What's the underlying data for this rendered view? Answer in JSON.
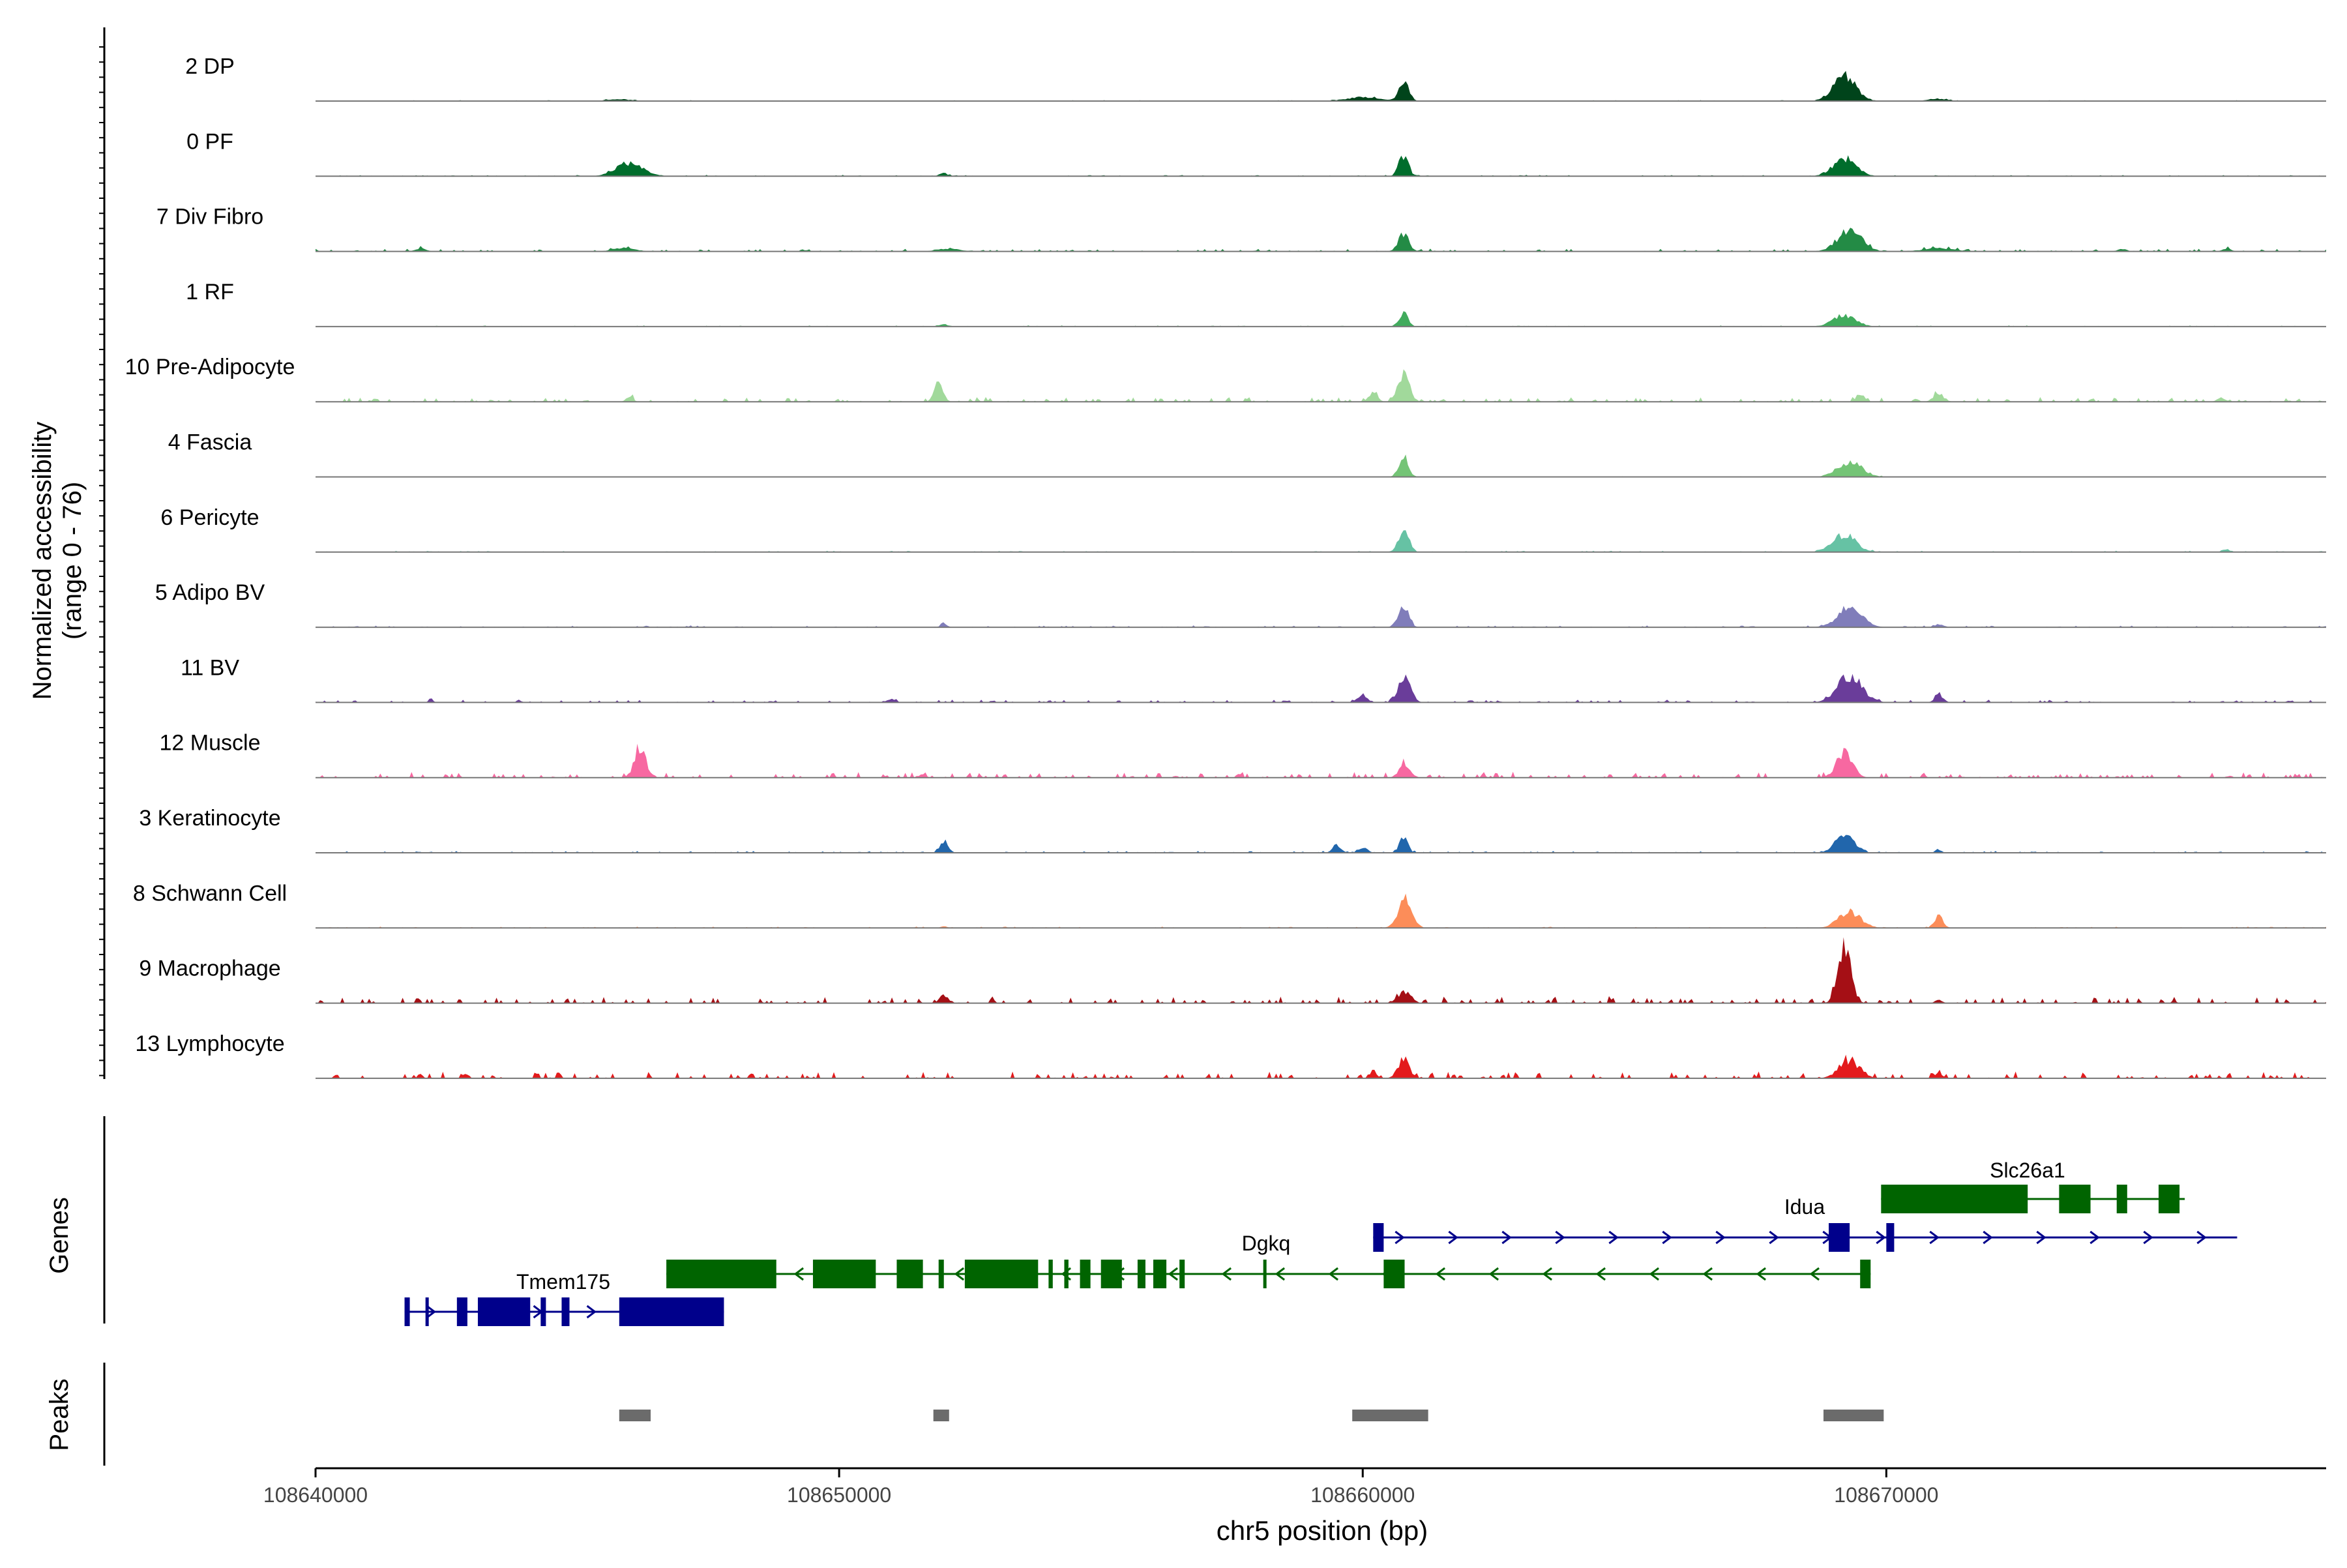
{
  "chart_data": {
    "type": "area",
    "xlabel": "chr5 position (bp)",
    "ylabel_line1": "Normalized accessibility",
    "ylabel_line2": "(range 0 - 76)",
    "y_range": [
      0,
      76
    ],
    "xlim": [
      108640000,
      108678400
    ],
    "x_ticks": [
      {
        "value": 108640000,
        "label": "108640000"
      },
      {
        "value": 108650000,
        "label": "108650000"
      },
      {
        "value": 108660000,
        "label": "108660000"
      },
      {
        "value": 108670000,
        "label": "108670000"
      }
    ],
    "genes_label": "Genes",
    "peaks_label": "Peaks",
    "tracks": [
      {
        "name": "2 DP",
        "color": "#00441b",
        "peaks": [
          [
            108660780,
            22,
            90
          ],
          [
            108669200,
            25,
            220
          ],
          [
            108660000,
            4,
            300
          ],
          [
            108645800,
            2,
            200
          ],
          [
            108671000,
            2,
            200
          ]
        ],
        "noise": 0.4
      },
      {
        "name": "0 PF",
        "color": "#006d2c",
        "peaks": [
          [
            108660780,
            22,
            90
          ],
          [
            108669200,
            18,
            220
          ],
          [
            108646000,
            14,
            250
          ],
          [
            108652000,
            3,
            80
          ]
        ],
        "noise": 0.6
      },
      {
        "name": "7 Div Fibro",
        "color": "#238b45",
        "peaks": [
          [
            108660780,
            18,
            100
          ],
          [
            108669300,
            22,
            230
          ],
          [
            108645900,
            4,
            200
          ],
          [
            108652100,
            3,
            200
          ],
          [
            108642000,
            3,
            100
          ],
          [
            108671000,
            3,
            300
          ],
          [
            108674500,
            3,
            80
          ],
          [
            108676500,
            3,
            80
          ]
        ],
        "noise": 1.2
      },
      {
        "name": "1 RF",
        "color": "#41ab5d",
        "peaks": [
          [
            108660780,
            14,
            80
          ],
          [
            108669200,
            12,
            220
          ],
          [
            108652000,
            2,
            100
          ]
        ],
        "noise": 0.5
      },
      {
        "name": "10 Pre-Adipocyte",
        "color": "#a1d99b",
        "peaks": [
          [
            108660780,
            28,
            110
          ],
          [
            108651900,
            20,
            80
          ],
          [
            108660200,
            10,
            80
          ],
          [
            108669500,
            8,
            80
          ],
          [
            108671000,
            8,
            100
          ],
          [
            108646000,
            6,
            60
          ],
          [
            108676400,
            4,
            80
          ]
        ],
        "noise": 2.0
      },
      {
        "name": "4 Fascia",
        "color": "#74c476",
        "peaks": [
          [
            108660780,
            22,
            90
          ],
          [
            108669300,
            16,
            230
          ]
        ],
        "noise": 0.3
      },
      {
        "name": "6 Pericyte",
        "color": "#66c2a4",
        "peaks": [
          [
            108660780,
            24,
            100
          ],
          [
            108669200,
            18,
            220
          ],
          [
            108676500,
            3,
            60
          ]
        ],
        "noise": 0.6
      },
      {
        "name": "5 Adipo BV",
        "color": "#807dba",
        "peaks": [
          [
            108660780,
            20,
            100
          ],
          [
            108669300,
            20,
            230
          ],
          [
            108652000,
            4,
            60
          ],
          [
            108671000,
            3,
            80
          ]
        ],
        "noise": 0.8
      },
      {
        "name": "11 BV",
        "color": "#6a3d9a",
        "peaks": [
          [
            108660800,
            30,
            110
          ],
          [
            108669300,
            28,
            230
          ],
          [
            108660000,
            8,
            80
          ],
          [
            108671000,
            8,
            80
          ],
          [
            108642200,
            4,
            40
          ],
          [
            108651000,
            4,
            80
          ]
        ],
        "noise": 1.2
      },
      {
        "name": "12 Muscle",
        "color": "#f768a1",
        "peaks": [
          [
            108646200,
            30,
            110
          ],
          [
            108660800,
            16,
            100
          ],
          [
            108669200,
            26,
            150
          ],
          [
            108651600,
            4,
            60
          ]
        ],
        "noise": 2.5
      },
      {
        "name": "3 Keratinocyte",
        "color": "#2166ac",
        "peaks": [
          [
            108660780,
            16,
            80
          ],
          [
            108669200,
            18,
            180
          ],
          [
            108652000,
            12,
            80
          ],
          [
            108659500,
            8,
            80
          ],
          [
            108660000,
            6,
            80
          ],
          [
            108671000,
            3,
            60
          ]
        ],
        "noise": 0.8
      },
      {
        "name": "8 Schwann Cell",
        "color": "#fc8d59",
        "peaks": [
          [
            108660800,
            30,
            130
          ],
          [
            108669300,
            16,
            220
          ],
          [
            108671000,
            12,
            80
          ],
          [
            108652000,
            2,
            60
          ]
        ],
        "noise": 0.6
      },
      {
        "name": "9 Macrophage",
        "color": "#a50f15",
        "peaks": [
          [
            108669200,
            60,
            120
          ],
          [
            108660800,
            12,
            120
          ],
          [
            108652000,
            8,
            80
          ],
          [
            108671000,
            4,
            60
          ]
        ],
        "noise": 3.0
      },
      {
        "name": "13 Lymphocyte",
        "color": "#e31a1c",
        "peaks": [
          [
            108660780,
            20,
            110
          ],
          [
            108669300,
            18,
            200
          ],
          [
            108642000,
            6,
            40
          ],
          [
            108660200,
            8,
            60
          ],
          [
            108671000,
            6,
            60
          ]
        ],
        "noise": 3.0
      }
    ],
    "genes": [
      {
        "name": "Tmem175",
        "strand": "+",
        "row": 3,
        "start": 108641700,
        "end": 108647800,
        "color": "#00008b",
        "exons": [
          [
            108641700,
            108641800
          ],
          [
            108642100,
            108642150
          ],
          [
            108642700,
            108642900
          ],
          [
            108643100,
            108644100
          ],
          [
            108644300,
            108644400
          ],
          [
            108644700,
            108644850
          ],
          [
            108645800,
            108647800
          ]
        ]
      },
      {
        "name": "Dgkq",
        "strand": "-",
        "row": 2,
        "start": 108646700,
        "end": 108669700,
        "color": "#006400",
        "exons": [
          [
            108646700,
            108648800
          ],
          [
            108649500,
            108650700
          ],
          [
            108651100,
            108651600
          ],
          [
            108651900,
            108652000
          ],
          [
            108652400,
            108653800
          ],
          [
            108654000,
            108654080
          ],
          [
            108654300,
            108654380
          ],
          [
            108654600,
            108654800
          ],
          [
            108655000,
            108655400
          ],
          [
            108655700,
            108655850
          ],
          [
            108656000,
            108656250
          ],
          [
            108656500,
            108656600
          ],
          [
            108658100,
            108658150
          ],
          [
            108660400,
            108660800
          ],
          [
            108669500,
            108669700
          ]
        ]
      },
      {
        "name": "Idua",
        "strand": "+",
        "row": 1,
        "start": 108660200,
        "end": 108676700,
        "color": "#00008b",
        "exons": [
          [
            108660200,
            108660400
          ],
          [
            108668900,
            108669300
          ],
          [
            108670000,
            108670150
          ]
        ]
      },
      {
        "name": "Slc26a1",
        "strand": "-",
        "row": 0,
        "start": 108669900,
        "end": 108675700,
        "color": "#006400",
        "exons": [
          [
            108669900,
            108672700
          ],
          [
            108673300,
            108673900
          ],
          [
            108674400,
            108674600
          ],
          [
            108675200,
            108675600
          ]
        ]
      }
    ],
    "peaks": [
      {
        "start": 108645800,
        "end": 108646400
      },
      {
        "start": 108651800,
        "end": 108652100
      },
      {
        "start": 108659800,
        "end": 108661250
      },
      {
        "start": 108668800,
        "end": 108669950
      }
    ]
  }
}
